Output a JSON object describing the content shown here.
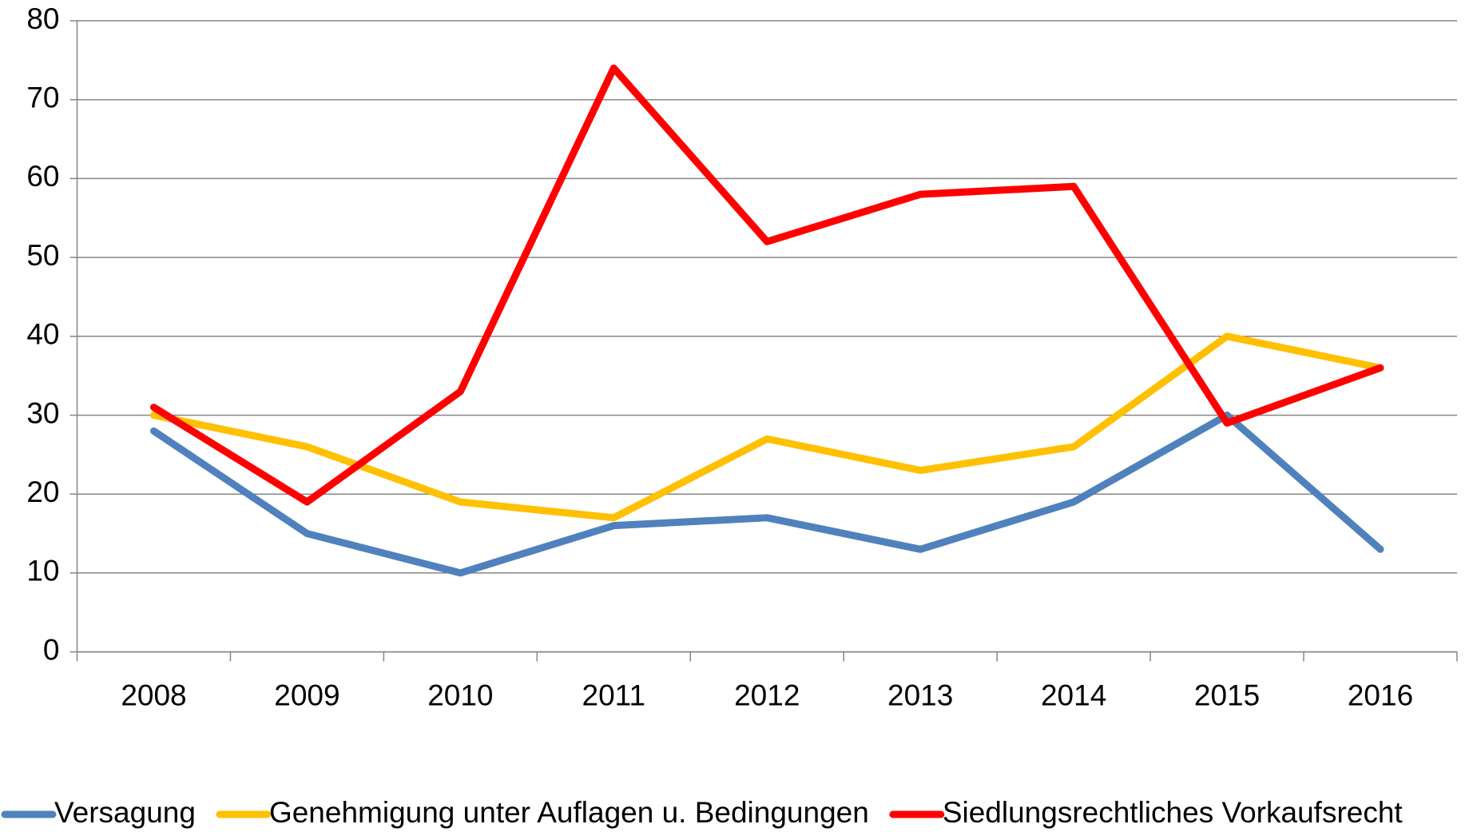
{
  "chart_data": {
    "type": "line",
    "x": [
      "2008",
      "2009",
      "2010",
      "2011",
      "2012",
      "2013",
      "2014",
      "2015",
      "2016"
    ],
    "series": [
      {
        "name": "Versagung",
        "color": "#4f81bd",
        "values": [
          28,
          15,
          10,
          16,
          17,
          13,
          19,
          30,
          13
        ]
      },
      {
        "name": "Genehmigung unter Auflagen u. Bedingungen",
        "color": "#ffc000",
        "values": [
          30,
          26,
          19,
          17,
          27,
          23,
          26,
          40,
          36
        ]
      },
      {
        "name": "Siedlungsrechtliches Vorkaufsrecht",
        "color": "#ff0000",
        "values": [
          31,
          19,
          33,
          74,
          52,
          58,
          59,
          29,
          36
        ]
      }
    ],
    "ylim": [
      0,
      80
    ],
    "yticks": [
      0,
      10,
      20,
      30,
      40,
      50,
      60,
      70,
      80
    ],
    "grid": true,
    "legend": "bottom"
  }
}
